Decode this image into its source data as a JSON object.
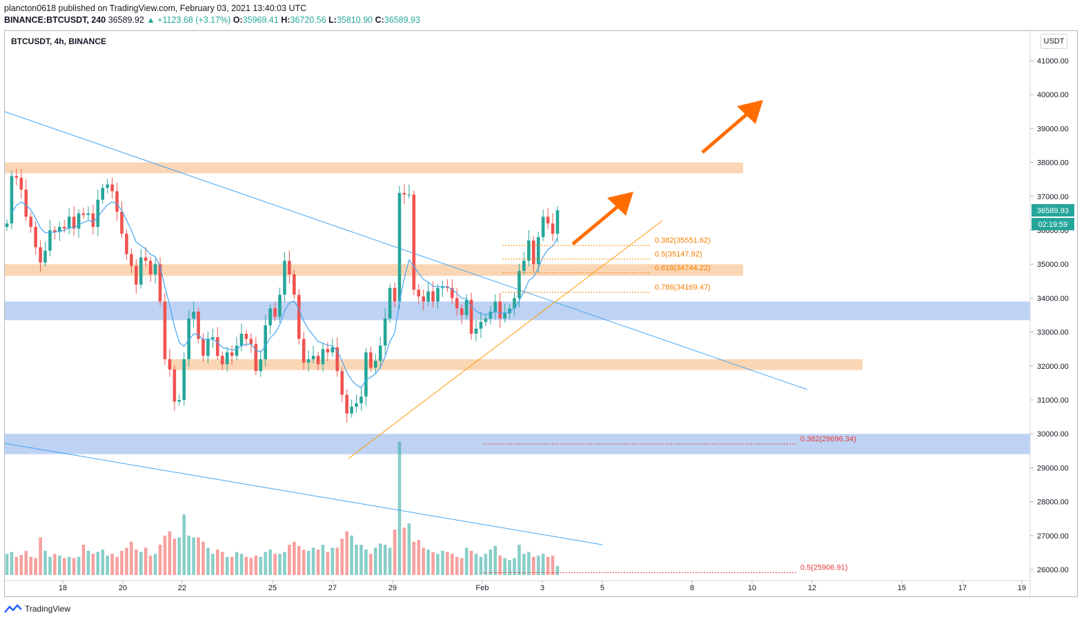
{
  "header": {
    "publisher": "plancton0618 published on TradingView.com, February 03, 2021 13:40:03 UTC",
    "ticker_line": "BINANCE:BTCUSDT, 240",
    "last": "36589.92",
    "change": "+1123.68 (+3.17%)",
    "o_label": "O:",
    "o_value": "35969.41",
    "h_label": "H:",
    "h_value": "36720.56",
    "l_label": "L:",
    "l_value": "35810.90",
    "c_label": "C:",
    "c_value": "36589.93"
  },
  "symbol_label": "BTCUSDT, 4h, BINANCE",
  "currency_button": "USDT",
  "price_tag": "36589.93",
  "countdown_tag": "02:19:59",
  "footer_brand": "TradingView",
  "colors": {
    "up": "#26a69a",
    "down": "#ef5350",
    "zone_orange": "#f9c89b",
    "zone_blue": "#a8c3f0",
    "trendline_blue": "#42a5f5",
    "trendline_orange": "#ff9800",
    "arrow": "#ff6d00",
    "fib_orange": "#f57c00",
    "fib_red": "#e53935"
  },
  "chart_data": {
    "type": "candlestick",
    "y_axis": {
      "min": 25700,
      "max": 41700,
      "ticks": [
        "41000.00",
        "40000.00",
        "39000.00",
        "38000.00",
        "37000.00",
        "36000.00",
        "35000.00",
        "34000.00",
        "33000.00",
        "32000.00",
        "31000.00",
        "30000.00",
        "29000.00",
        "28000.00",
        "27000.00",
        "26000.00"
      ]
    },
    "x_ticks": [
      "18",
      "20",
      "22",
      "25",
      "27",
      "29",
      "Feb",
      "3",
      "5",
      "8",
      "10",
      "12",
      "15",
      "17",
      "19"
    ],
    "zones": [
      {
        "low": 37680,
        "high": 38000,
        "color": "orange"
      },
      {
        "low": 34660,
        "high": 35000,
        "color": "orange"
      },
      {
        "low": 33350,
        "high": 33900,
        "color": "blue"
      },
      {
        "low": 31880,
        "high": 32200,
        "color": "orange"
      },
      {
        "low": 29400,
        "high": 30000,
        "color": "blue"
      }
    ],
    "fib_levels": [
      {
        "label": "0.382(35551.62)",
        "value": 35551.62,
        "color": "orange"
      },
      {
        "label": "0.5(35147.92)",
        "value": 35147.92,
        "color": "orange"
      },
      {
        "label": "0.618(34744.22)",
        "value": 34744.22,
        "color": "orange"
      },
      {
        "label": "0.786(34169.47)",
        "value": 34169.47,
        "color": "orange"
      },
      {
        "label": "0.382(29696.34)",
        "value": 29696.34,
        "color": "red"
      },
      {
        "label": "0.5(25906.91)",
        "value": 25906.91,
        "color": "red"
      }
    ],
    "closes": [
      36200,
      37600,
      37550,
      37200,
      36400,
      36100,
      35500,
      35050,
      35400,
      36000,
      35950,
      36100,
      36050,
      36400,
      36050,
      36500,
      36450,
      36500,
      36100,
      36900,
      37250,
      37350,
      37150,
      36550,
      35900,
      35300,
      34950,
      34400,
      35200,
      35100,
      34700,
      35000,
      33900,
      32200,
      31900,
      30950,
      31000,
      32200,
      33400,
      33600,
      32800,
      32300,
      32800,
      32850,
      32300,
      32050,
      32400,
      32300,
      32600,
      32950,
      32800,
      32650,
      31850,
      32200,
      33200,
      33700,
      33450,
      34100,
      35100,
      34700,
      34100,
      32800,
      32100,
      32200,
      32300,
      32050,
      32500,
      32400,
      32550,
      31850,
      31150,
      30600,
      30800,
      30900,
      31100,
      32400,
      31950,
      32150,
      32600,
      33400,
      34300,
      33900,
      37100,
      37050,
      37050,
      34250,
      34050,
      33900,
      34200,
      33900,
      34300,
      34350,
      34300,
      34000,
      33700,
      33500,
      33950,
      32950,
      33100,
      33300,
      33400,
      33600,
      33900,
      33400,
      33550,
      33700,
      34000,
      34800,
      35100,
      35700,
      35000,
      35800,
      36400,
      36200,
      35900,
      36590
    ],
    "volumes": [
      0.35,
      0.38,
      0.3,
      0.33,
      0.4,
      0.3,
      0.28,
      0.62,
      0.4,
      0.3,
      0.35,
      0.32,
      0.28,
      0.3,
      0.28,
      0.3,
      0.5,
      0.4,
      0.35,
      0.38,
      0.42,
      0.32,
      0.35,
      0.3,
      0.4,
      0.45,
      0.55,
      0.42,
      0.38,
      0.45,
      0.32,
      0.35,
      0.5,
      0.65,
      0.72,
      0.6,
      0.62,
      1.0,
      0.65,
      0.62,
      0.62,
      0.55,
      0.45,
      0.35,
      0.42,
      0.38,
      0.3,
      0.3,
      0.38,
      0.35,
      0.3,
      0.28,
      0.32,
      0.3,
      0.38,
      0.42,
      0.35,
      0.35,
      0.38,
      0.5,
      0.55,
      0.48,
      0.42,
      0.4,
      0.45,
      0.42,
      0.5,
      0.38,
      0.45,
      0.45,
      0.6,
      0.72,
      0.65,
      0.5,
      0.5,
      0.42,
      0.35,
      0.45,
      0.52,
      0.5,
      0.45,
      0.75,
      2.2,
      0.78,
      0.85,
      0.55,
      0.58,
      0.45,
      0.42,
      0.38,
      0.35,
      0.4,
      0.38,
      0.35,
      0.3,
      0.28,
      0.45,
      0.4,
      0.35,
      0.3,
      0.35,
      0.42,
      0.48,
      0.32,
      0.28,
      0.25,
      0.28,
      0.5,
      0.35,
      0.38,
      0.3,
      0.32,
      0.35,
      0.3,
      0.32,
      0.15
    ]
  }
}
